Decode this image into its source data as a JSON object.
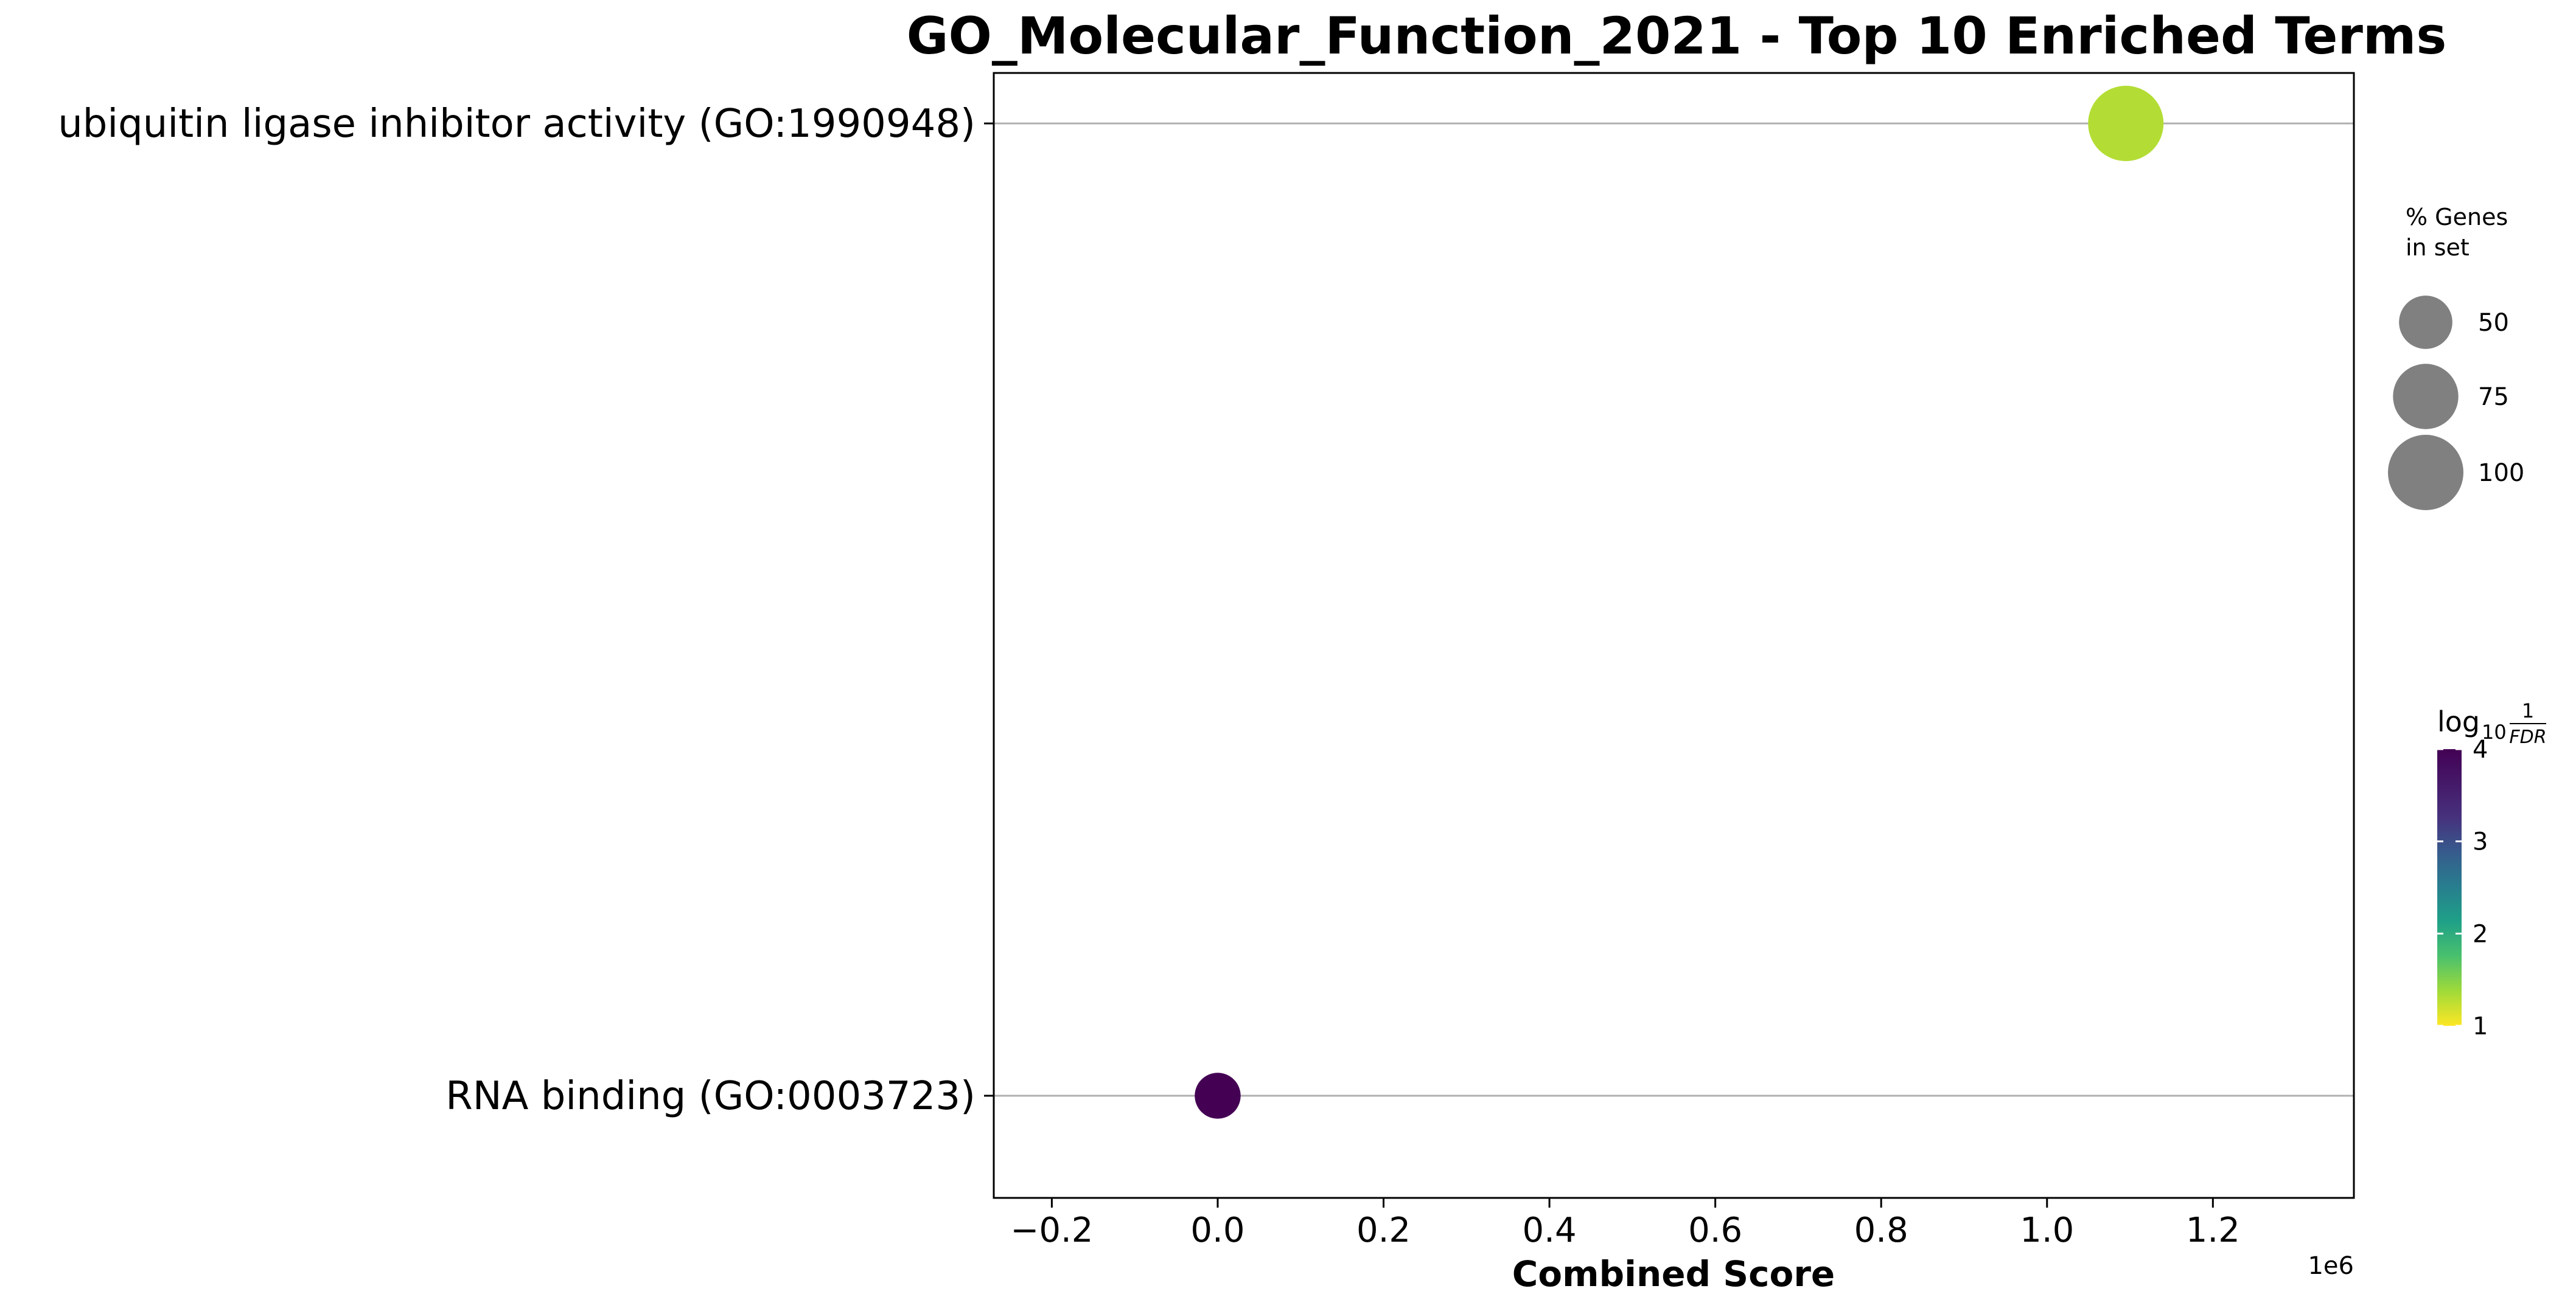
{
  "chart_data": {
    "type": "scatter",
    "title": "GO_Molecular_Function_2021 - Top 10 Enriched Terms",
    "xlabel": "Combined Score",
    "x_offset_label": "1e6",
    "xlim": [
      -0.27,
      1.37
    ],
    "x_ticks": [
      {
        "value": -0.2,
        "label": "−0.2"
      },
      {
        "value": 0.0,
        "label": "0.0"
      },
      {
        "value": 0.2,
        "label": "0.2"
      },
      {
        "value": 0.4,
        "label": "0.4"
      },
      {
        "value": 0.6,
        "label": "0.6"
      },
      {
        "value": 0.8,
        "label": "0.8"
      },
      {
        "value": 1.0,
        "label": "1.0"
      },
      {
        "value": 1.2,
        "label": "1.2"
      }
    ],
    "grid": "horizontal",
    "points": [
      {
        "term": "ubiquitin ligase inhibitor activity (GO:1990948)",
        "combined_score": 1.095,
        "percent_genes": 100,
        "log10_inv_fdr": 1.3
      },
      {
        "term": "RNA binding (GO:0003723)",
        "combined_score": 0.0,
        "percent_genes": 37,
        "log10_inv_fdr": 4.0
      }
    ],
    "size_legend": {
      "title_line1": "% Genes",
      "title_line2": "in set",
      "entries": [
        {
          "label": "50",
          "value": 50
        },
        {
          "label": "75",
          "value": 75
        },
        {
          "label": "100",
          "value": 100
        }
      ]
    },
    "colorbar": {
      "label_log": "log",
      "label_sub": "10",
      "label_num": "1",
      "label_den": "FDR",
      "colormap": "viridis_r",
      "range": [
        1,
        4
      ],
      "ticks": [
        {
          "value": 1,
          "label": "1"
        },
        {
          "value": 2,
          "label": "2"
        },
        {
          "value": 3,
          "label": "3"
        },
        {
          "value": 4,
          "label": "4"
        }
      ]
    },
    "colors": {
      "gridline": "#b0b0b0",
      "legend_marker": "#808080"
    }
  }
}
